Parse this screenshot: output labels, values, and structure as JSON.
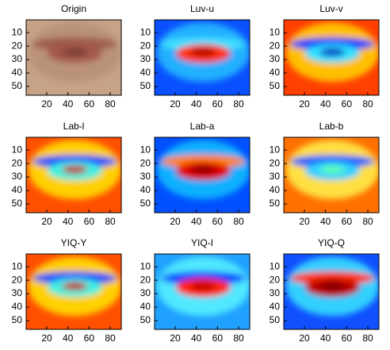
{
  "chart_data": [
    {
      "type": "image",
      "title": "Origin",
      "xlim": [
        0.5,
        90.5
      ],
      "ylim": [
        0.5,
        56.5
      ],
      "xticks": [
        20,
        40,
        60,
        80
      ],
      "yticks": [
        10,
        20,
        30,
        40,
        50
      ]
    },
    {
      "type": "image",
      "title": "Luv-u",
      "xlim": [
        0.5,
        90.5
      ],
      "ylim": [
        0.5,
        56.5
      ],
      "xticks": [
        20,
        40,
        60,
        80
      ],
      "yticks": [
        10,
        20,
        30,
        40,
        50
      ]
    },
    {
      "type": "image",
      "title": "Luv-v",
      "xlim": [
        0.5,
        90.5
      ],
      "ylim": [
        0.5,
        56.5
      ],
      "xticks": [
        20,
        40,
        60,
        80
      ],
      "yticks": [
        10,
        20,
        30,
        40,
        50
      ]
    },
    {
      "type": "image",
      "title": "Lab-l",
      "xlim": [
        0.5,
        90.5
      ],
      "ylim": [
        0.5,
        56.5
      ],
      "xticks": [
        20,
        40,
        60,
        80
      ],
      "yticks": [
        10,
        20,
        30,
        40,
        50
      ]
    },
    {
      "type": "image",
      "title": "Lab-a",
      "xlim": [
        0.5,
        90.5
      ],
      "ylim": [
        0.5,
        56.5
      ],
      "xticks": [
        20,
        40,
        60,
        80
      ],
      "yticks": [
        10,
        20,
        30,
        40,
        50
      ]
    },
    {
      "type": "image",
      "title": "Lab-b",
      "xlim": [
        0.5,
        90.5
      ],
      "ylim": [
        0.5,
        56.5
      ],
      "xticks": [
        20,
        40,
        60,
        80
      ],
      "yticks": [
        10,
        20,
        30,
        40,
        50
      ]
    },
    {
      "type": "image",
      "title": "YIQ-Y",
      "xlim": [
        0.5,
        90.5
      ],
      "ylim": [
        0.5,
        56.5
      ],
      "xticks": [
        20,
        40,
        60,
        80
      ],
      "yticks": [
        10,
        20,
        30,
        40,
        50
      ]
    },
    {
      "type": "image",
      "title": "YIQ-I",
      "xlim": [
        0.5,
        90.5
      ],
      "ylim": [
        0.5,
        56.5
      ],
      "xticks": [
        20,
        40,
        60,
        80
      ],
      "yticks": [
        10,
        20,
        30,
        40,
        50
      ]
    },
    {
      "type": "image",
      "title": "YIQ-Q",
      "xlim": [
        0.5,
        90.5
      ],
      "ylim": [
        0.5,
        56.5
      ],
      "xticks": [
        20,
        40,
        60,
        80
      ],
      "yticks": [
        10,
        20,
        30,
        40,
        50
      ]
    }
  ]
}
